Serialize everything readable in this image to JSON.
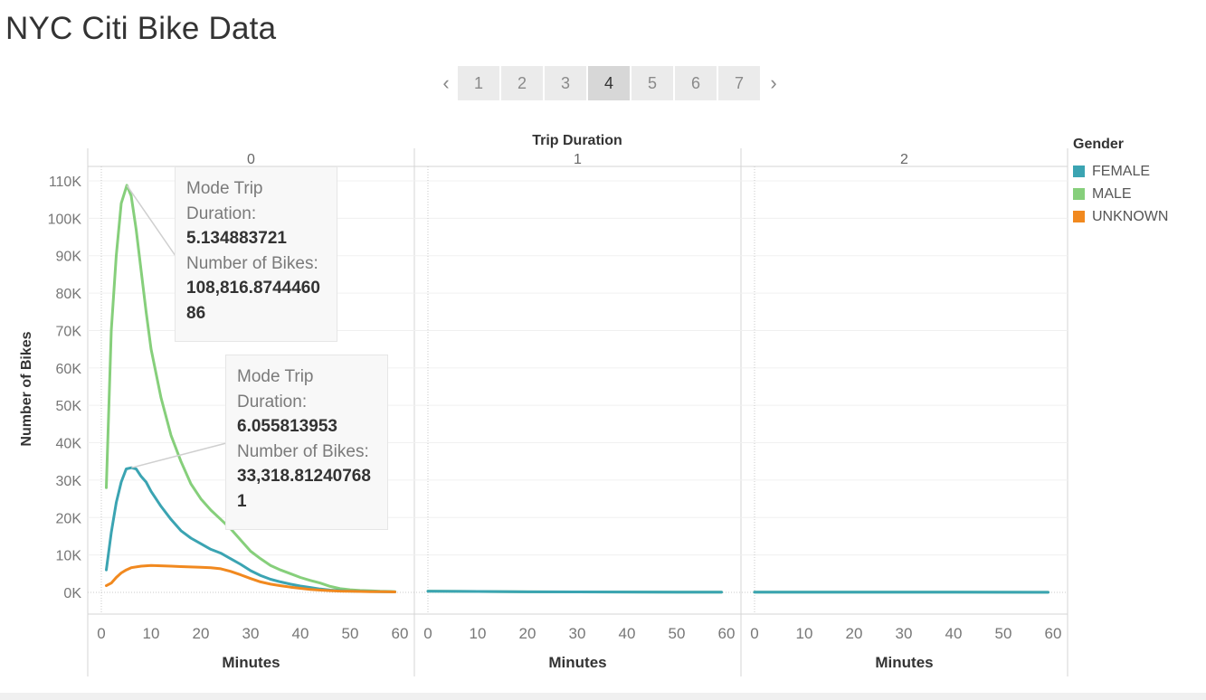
{
  "page": {
    "title": "NYC Citi Bike Data",
    "pager": {
      "prev_icon": "chevron-left-icon",
      "next_icon": "chevron-right-icon",
      "pages": [
        "1",
        "2",
        "3",
        "4",
        "5",
        "6",
        "7"
      ],
      "active_index": 3
    }
  },
  "chart_data": {
    "type": "line",
    "title": "",
    "column_header": "Trip Duration",
    "xlabel": "Minutes",
    "ylabel": "Number of Bikes",
    "xlim": [
      0,
      60
    ],
    "ylim": [
      0,
      110000
    ],
    "x_ticks": [
      "0",
      "10",
      "20",
      "30",
      "40",
      "50",
      "60"
    ],
    "y_ticks": [
      "0K",
      "10K",
      "20K",
      "30K",
      "40K",
      "50K",
      "60K",
      "70K",
      "80K",
      "90K",
      "100K",
      "110K"
    ],
    "grid": true,
    "legend": {
      "title": "Gender",
      "position": "right",
      "items": [
        {
          "name": "FEMALE",
          "color": "#3ba4b2"
        },
        {
          "name": "MALE",
          "color": "#86cf7b"
        },
        {
          "name": "UNKNOWN",
          "color": "#f1891f"
        }
      ]
    },
    "panels": [
      {
        "label": "0",
        "series": [
          {
            "name": "MALE",
            "color": "#86cf7b",
            "points": [
              [
                1,
                28000
              ],
              [
                2,
                70000
              ],
              [
                3,
                90000
              ],
              [
                4,
                104000
              ],
              [
                5.13,
                108816.87
              ],
              [
                6,
                106000
              ],
              [
                7,
                97000
              ],
              [
                8,
                86000
              ],
              [
                9,
                75000
              ],
              [
                10,
                65000
              ],
              [
                12,
                52000
              ],
              [
                14,
                42000
              ],
              [
                16,
                35000
              ],
              [
                18,
                29000
              ],
              [
                20,
                25000
              ],
              [
                22,
                22000
              ],
              [
                24,
                19500
              ],
              [
                26,
                17000
              ],
              [
                28,
                14000
              ],
              [
                30,
                11000
              ],
              [
                32,
                9000
              ],
              [
                34,
                7200
              ],
              [
                36,
                6000
              ],
              [
                38,
                5000
              ],
              [
                40,
                4000
              ],
              [
                42,
                3200
              ],
              [
                44,
                2500
              ],
              [
                46,
                1600
              ],
              [
                48,
                1000
              ],
              [
                50,
                700
              ],
              [
                52,
                500
              ],
              [
                54,
                400
              ],
              [
                56,
                300
              ],
              [
                58,
                250
              ],
              [
                59,
                200
              ]
            ]
          },
          {
            "name": "FEMALE",
            "color": "#3ba4b2",
            "points": [
              [
                1,
                6000
              ],
              [
                2,
                16000
              ],
              [
                3,
                24000
              ],
              [
                4,
                29500
              ],
              [
                5,
                33000
              ],
              [
                6.06,
                33318.81
              ],
              [
                7,
                33000
              ],
              [
                8,
                31000
              ],
              [
                9,
                29500
              ],
              [
                10,
                27000
              ],
              [
                12,
                23000
              ],
              [
                14,
                19500
              ],
              [
                16,
                16500
              ],
              [
                18,
                14500
              ],
              [
                20,
                13000
              ],
              [
                22,
                11500
              ],
              [
                24,
                10500
              ],
              [
                26,
                9000
              ],
              [
                28,
                7500
              ],
              [
                30,
                5800
              ],
              [
                32,
                4500
              ],
              [
                34,
                3500
              ],
              [
                36,
                2800
              ],
              [
                38,
                2200
              ],
              [
                40,
                1700
              ],
              [
                42,
                1300
              ],
              [
                44,
                900
              ],
              [
                46,
                600
              ],
              [
                48,
                450
              ],
              [
                50,
                350
              ],
              [
                52,
                300
              ],
              [
                54,
                250
              ],
              [
                56,
                200
              ],
              [
                58,
                150
              ],
              [
                59,
                120
              ]
            ]
          },
          {
            "name": "UNKNOWN",
            "color": "#f1891f",
            "points": [
              [
                1,
                1800
              ],
              [
                2,
                2500
              ],
              [
                3,
                4000
              ],
              [
                4,
                5200
              ],
              [
                5,
                6000
              ],
              [
                6,
                6600
              ],
              [
                8,
                7000
              ],
              [
                10,
                7200
              ],
              [
                12,
                7100
              ],
              [
                14,
                7000
              ],
              [
                16,
                6900
              ],
              [
                18,
                6800
              ],
              [
                20,
                6700
              ],
              [
                22,
                6600
              ],
              [
                24,
                6300
              ],
              [
                26,
                5600
              ],
              [
                28,
                4700
              ],
              [
                30,
                3700
              ],
              [
                32,
                2800
              ],
              [
                34,
                2200
              ],
              [
                36,
                1800
              ],
              [
                38,
                1400
              ],
              [
                40,
                1100
              ],
              [
                42,
                800
              ],
              [
                44,
                600
              ],
              [
                46,
                450
              ],
              [
                48,
                350
              ],
              [
                50,
                280
              ],
              [
                52,
                230
              ],
              [
                54,
                200
              ],
              [
                56,
                170
              ],
              [
                58,
                150
              ],
              [
                59,
                130
              ]
            ]
          }
        ]
      },
      {
        "label": "1",
        "series": [
          {
            "name": "MALE",
            "color": "#86cf7b",
            "points": [
              [
                0,
                350
              ],
              [
                10,
                250
              ],
              [
                20,
                150
              ],
              [
                30,
                120
              ],
              [
                40,
                100
              ],
              [
                50,
                80
              ],
              [
                59,
                70
              ]
            ]
          },
          {
            "name": "FEMALE",
            "color": "#3ba4b2",
            "points": [
              [
                0,
                300
              ],
              [
                10,
                230
              ],
              [
                20,
                150
              ],
              [
                30,
                120
              ],
              [
                40,
                100
              ],
              [
                50,
                80
              ],
              [
                59,
                70
              ]
            ]
          }
        ]
      },
      {
        "label": "2",
        "series": [
          {
            "name": "MALE",
            "color": "#86cf7b",
            "points": [
              [
                0,
                60
              ],
              [
                20,
                50
              ],
              [
                40,
                40
              ],
              [
                59,
                30
              ]
            ]
          },
          {
            "name": "FEMALE",
            "color": "#3ba4b2",
            "points": [
              [
                0,
                60
              ],
              [
                20,
                50
              ],
              [
                40,
                40
              ],
              [
                59,
                30
              ]
            ]
          }
        ]
      }
    ],
    "annotations": [
      {
        "lines": [
          {
            "label": "Mode Trip Duration:",
            "value": "5.134883721"
          },
          {
            "label": "Number of Bikes:",
            "value": "108,816.874446086"
          }
        ]
      },
      {
        "lines": [
          {
            "label": "Mode Trip Duration:",
            "value": "6.055813953"
          },
          {
            "label": "Number of Bikes:",
            "value": "33,318.812407681"
          }
        ]
      }
    ]
  }
}
